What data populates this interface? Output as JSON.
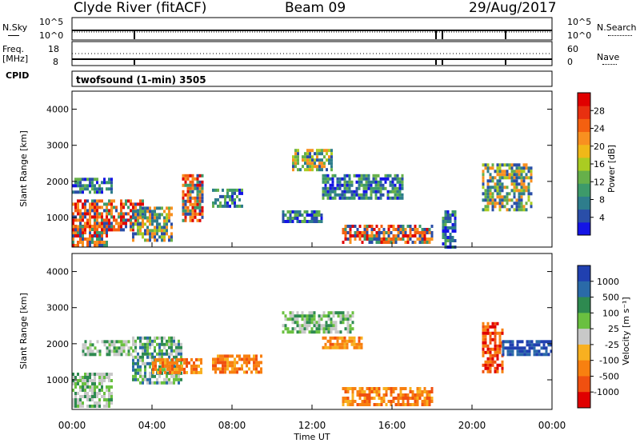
{
  "header": {
    "station": "Clyde River (fitACF)",
    "beam": "Beam 09",
    "date": "29/Aug/2017"
  },
  "sky_panel": {
    "left_label": "N.Sky",
    "left_ticks": [
      "10^5",
      "10^0"
    ],
    "right_label": "N.Search",
    "right_ticks": [
      "10^5",
      "10^0"
    ]
  },
  "freq_panel": {
    "left_label_line1": "Freq.",
    "left_label_line2": "[MHz]",
    "left_ticks": [
      "18",
      "8"
    ],
    "right_label": "Nave",
    "right_ticks": [
      "60",
      "0"
    ]
  },
  "cpid_panel": {
    "label": "CPID",
    "value": "twofsound (1-min) 3505"
  },
  "chart_data": [
    {
      "type": "heatmap",
      "title": "Power",
      "xlabel": "",
      "ylabel": "Slant Range [km]",
      "xlim_hours": [
        0,
        24
      ],
      "ylim_km": [
        180,
        4500
      ],
      "y_ticks": [
        "1000",
        "2000",
        "3000",
        "4000"
      ],
      "colorbar": {
        "label": "Power [dB]",
        "ticks": [
          "4",
          "8",
          "12",
          "16",
          "20",
          "24",
          "28"
        ],
        "colors": [
          "#1414e6",
          "#2a4ea8",
          "#2e7d8c",
          "#3d9a6a",
          "#66b04a",
          "#aacc22",
          "#f0b818",
          "#f89020",
          "#f46010",
          "#e83010",
          "#e00000"
        ]
      },
      "echo_regions": [
        {
          "t": [
            0.0,
            1.8
          ],
          "range": [
            200,
            800
          ],
          "level": "strong"
        },
        {
          "t": [
            0.0,
            3.5
          ],
          "range": [
            700,
            1500
          ],
          "level": "strong"
        },
        {
          "t": [
            0.0,
            2.0
          ],
          "range": [
            1700,
            2100
          ],
          "level": "weak"
        },
        {
          "t": [
            3.0,
            5.0
          ],
          "range": [
            400,
            1300
          ],
          "level": "medium"
        },
        {
          "t": [
            5.5,
            6.5
          ],
          "range": [
            900,
            2200
          ],
          "level": "strong"
        },
        {
          "t": [
            7.0,
            8.5
          ],
          "range": [
            1300,
            1800
          ],
          "level": "weak"
        },
        {
          "t": [
            10.5,
            12.5
          ],
          "range": [
            900,
            1200
          ],
          "level": "weak"
        },
        {
          "t": [
            11.0,
            13.0
          ],
          "range": [
            2300,
            2900
          ],
          "level": "medium"
        },
        {
          "t": [
            13.5,
            18.0
          ],
          "range": [
            300,
            800
          ],
          "level": "strong"
        },
        {
          "t": [
            12.5,
            16.5
          ],
          "range": [
            1500,
            2200
          ],
          "level": "weak"
        },
        {
          "t": [
            18.5,
            19.2
          ],
          "range": [
            200,
            1200
          ],
          "level": "weak"
        },
        {
          "t": [
            20.5,
            23.0
          ],
          "range": [
            1200,
            2500
          ],
          "level": "medium"
        }
      ]
    },
    {
      "type": "heatmap",
      "title": "Velocity",
      "xlabel": "Time UT",
      "ylabel": "Slant Range [km]",
      "xlim_hours": [
        0,
        24
      ],
      "ylim_km": [
        180,
        4500
      ],
      "x_ticks": [
        "00:00",
        "04:00",
        "08:00",
        "12:00",
        "16:00",
        "20:00",
        "00:00"
      ],
      "y_ticks": [
        "1000",
        "2000",
        "3000",
        "4000"
      ],
      "colorbar": {
        "label": "Velocity [m s⁻¹]",
        "ticks": [
          "1000",
          "500",
          "100",
          "25",
          "-25",
          "-100",
          "-500",
          "-1000"
        ],
        "colors": [
          "#2040b0",
          "#2a6aa8",
          "#2e8a50",
          "#6ac040",
          "#c8c8c8",
          "#f8b020",
          "#f88010",
          "#f05010",
          "#e00000"
        ]
      },
      "echo_regions": [
        {
          "t": [
            0.0,
            2.0
          ],
          "range": [
            300,
            1200
          ],
          "level": "ground"
        },
        {
          "t": [
            0.5,
            3.0
          ],
          "range": [
            1700,
            2100
          ],
          "level": "ground"
        },
        {
          "t": [
            3.0,
            5.5
          ],
          "range": [
            900,
            2200
          ],
          "level": "positive"
        },
        {
          "t": [
            4.0,
            6.5
          ],
          "range": [
            1200,
            1600
          ],
          "level": "negative"
        },
        {
          "t": [
            7.0,
            9.5
          ],
          "range": [
            1200,
            1700
          ],
          "level": "negative"
        },
        {
          "t": [
            10.5,
            14.0
          ],
          "range": [
            2300,
            2900
          ],
          "level": "ground"
        },
        {
          "t": [
            12.5,
            14.5
          ],
          "range": [
            1900,
            2200
          ],
          "level": "negative"
        },
        {
          "t": [
            13.5,
            18.0
          ],
          "range": [
            300,
            800
          ],
          "level": "negative"
        },
        {
          "t": [
            20.5,
            21.5
          ],
          "range": [
            1200,
            2600
          ],
          "level": "strong-negative"
        },
        {
          "t": [
            21.5,
            24.0
          ],
          "range": [
            1700,
            2100
          ],
          "level": "strong-positive"
        }
      ]
    }
  ]
}
